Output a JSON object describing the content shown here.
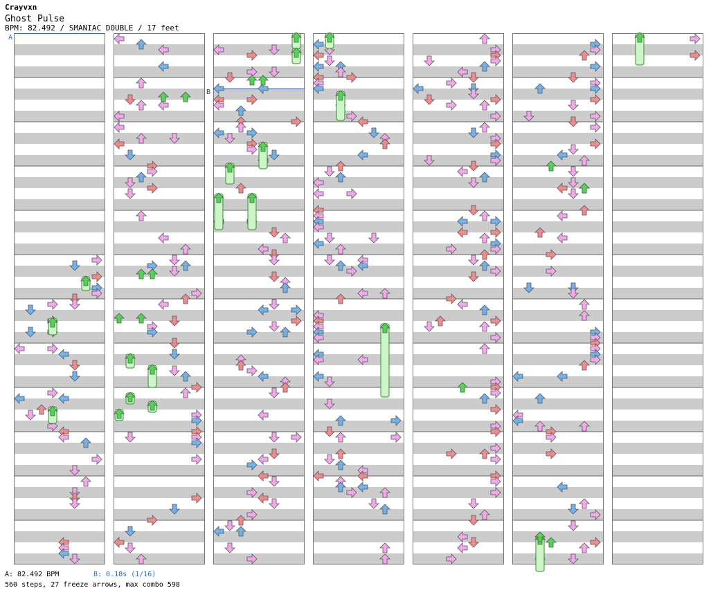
{
  "header": {
    "artist": "Crayvxn",
    "title": "Ghost Pulse",
    "meta": "BPM: 82.492 / SMANIAC DOUBLE / 17 feet"
  },
  "markers": [
    {
      "label": "A",
      "color": "#2a6cc0"
    },
    {
      "label": "B",
      "color": "#1a3f8f"
    }
  ],
  "footer": {
    "bpm_a": "A: 82.492 BPM",
    "bpm_b": "B: 0.18s (1/16)",
    "stats": "560 steps, 27 freeze arrows, max combo 598"
  },
  "colors": {
    "quarter": "#f28a8a",
    "eighth": "#6fb2ee",
    "sixteenth": "#f3a8ee",
    "freeze": "#cdf5c8",
    "freeze_head": "#4dd84d",
    "stripe": "#cccccc"
  },
  "chart_data": {
    "type": "step-chart",
    "bpm": 82.492,
    "difficulty": "SMANIAC DOUBLE",
    "feet": 17,
    "columns": 7,
    "lanes": 8,
    "steps": 560,
    "freeze_arrows": 27,
    "max_combo": 598
  }
}
